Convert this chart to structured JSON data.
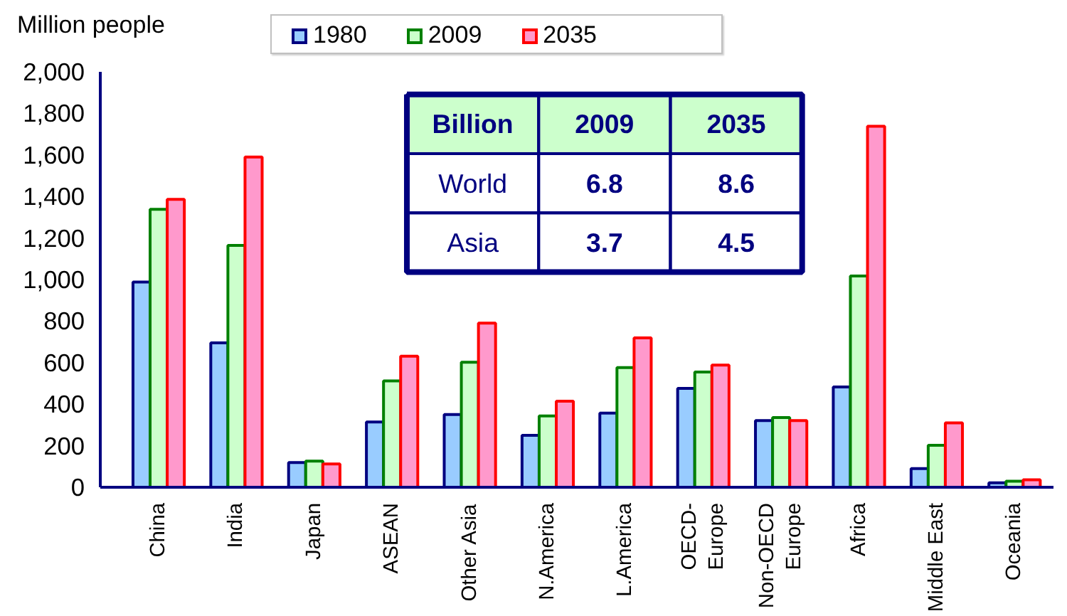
{
  "chart_data": {
    "type": "bar",
    "ylabel": "Million people",
    "categories": [
      "China",
      "India",
      "Japan",
      "ASEAN",
      "Other Asia",
      "N.America",
      "L.America",
      "OECD-\nEurope",
      "Non-OECD\nEurope",
      "Africa",
      "Middle East",
      "Oceania"
    ],
    "series": [
      {
        "name": "1980",
        "color": "#99ccff",
        "values": [
          988,
          695,
          119,
          314,
          350,
          250,
          357,
          476,
          321,
          483,
          90,
          21
        ]
      },
      {
        "name": "2009",
        "color": "#ccffcc",
        "values": [
          1338,
          1164,
          126,
          512,
          602,
          343,
          576,
          555,
          336,
          1017,
          202,
          29
        ]
      },
      {
        "name": "2035",
        "color": "#ff99cc",
        "values": [
          1386,
          1590,
          112,
          631,
          790,
          414,
          719,
          588,
          321,
          1738,
          310,
          36
        ]
      }
    ],
    "ylim": [
      0,
      2000
    ],
    "yticks": [
      0,
      200,
      400,
      600,
      800,
      {
        "value": 1000,
        "label": "1,000"
      },
      {
        "value": 1200,
        "label": "1,200"
      },
      {
        "value": 1400,
        "label": "1,400"
      },
      {
        "value": 1600,
        "label": "1,600"
      },
      {
        "value": 1800,
        "label": "1,800"
      },
      {
        "value": 2000,
        "label": "2,000"
      }
    ],
    "grid": false,
    "legend": "top",
    "annotations": [
      "Billion",
      "2009",
      "2035",
      "World",
      "6.8",
      "8.6",
      "Asia",
      "3.7",
      "4.5"
    ]
  }
}
